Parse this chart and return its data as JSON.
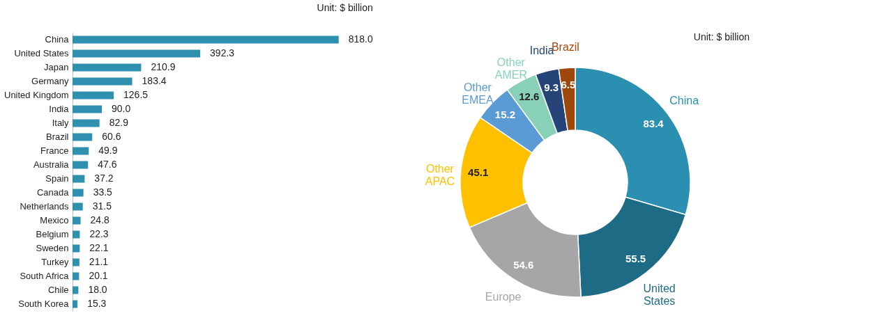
{
  "chart_data": [
    {
      "type": "bar",
      "orientation": "horizontal",
      "annotations": [
        "Unit: $ billion"
      ],
      "value_labels": [
        "818.0",
        "392.3",
        "210.9",
        "183.4",
        "126.5",
        "90.0",
        "82.9",
        "60.6",
        "49.9",
        "47.6",
        "37.2",
        "33.5",
        "31.5",
        "24.8",
        "22.3",
        "22.1",
        "21.1",
        "20.1",
        "18.0",
        "15.3"
      ],
      "categories": [
        "China",
        "United States",
        "Japan",
        "Germany",
        "United Kingdom",
        "India",
        "Italy",
        "Brazil",
        "France",
        "Australia",
        "Spain",
        "Canada",
        "Netherlands",
        "Mexico",
        "Belgium",
        "Sweden",
        "Turkey",
        "South Africa",
        "Chile",
        "South Korea"
      ],
      "values": [
        818.0,
        392.3,
        210.9,
        183.4,
        126.5,
        90.0,
        82.9,
        60.6,
        49.9,
        47.6,
        37.2,
        33.5,
        31.5,
        24.8,
        22.3,
        22.1,
        21.1,
        20.1,
        18.0,
        15.3
      ],
      "color": "#2e8fae"
    },
    {
      "type": "donut",
      "annotations": [
        "Unit: $ billion"
      ],
      "data_labels": true,
      "categories": [
        "China",
        "United States",
        "Europe",
        "Other APAC",
        "Other EMEA",
        "Other AMER",
        "India",
        "Brazil"
      ],
      "values": [
        83.4,
        55.5,
        54.6,
        45.1,
        15.2,
        12.6,
        9.3,
        6.5
      ],
      "colors": [
        "#2a8fb0",
        "#1d6b85",
        "#a6a6a6",
        "#ffc000",
        "#5b9bd5",
        "#88d1b8",
        "#264478",
        "#9e480e"
      ]
    }
  ]
}
